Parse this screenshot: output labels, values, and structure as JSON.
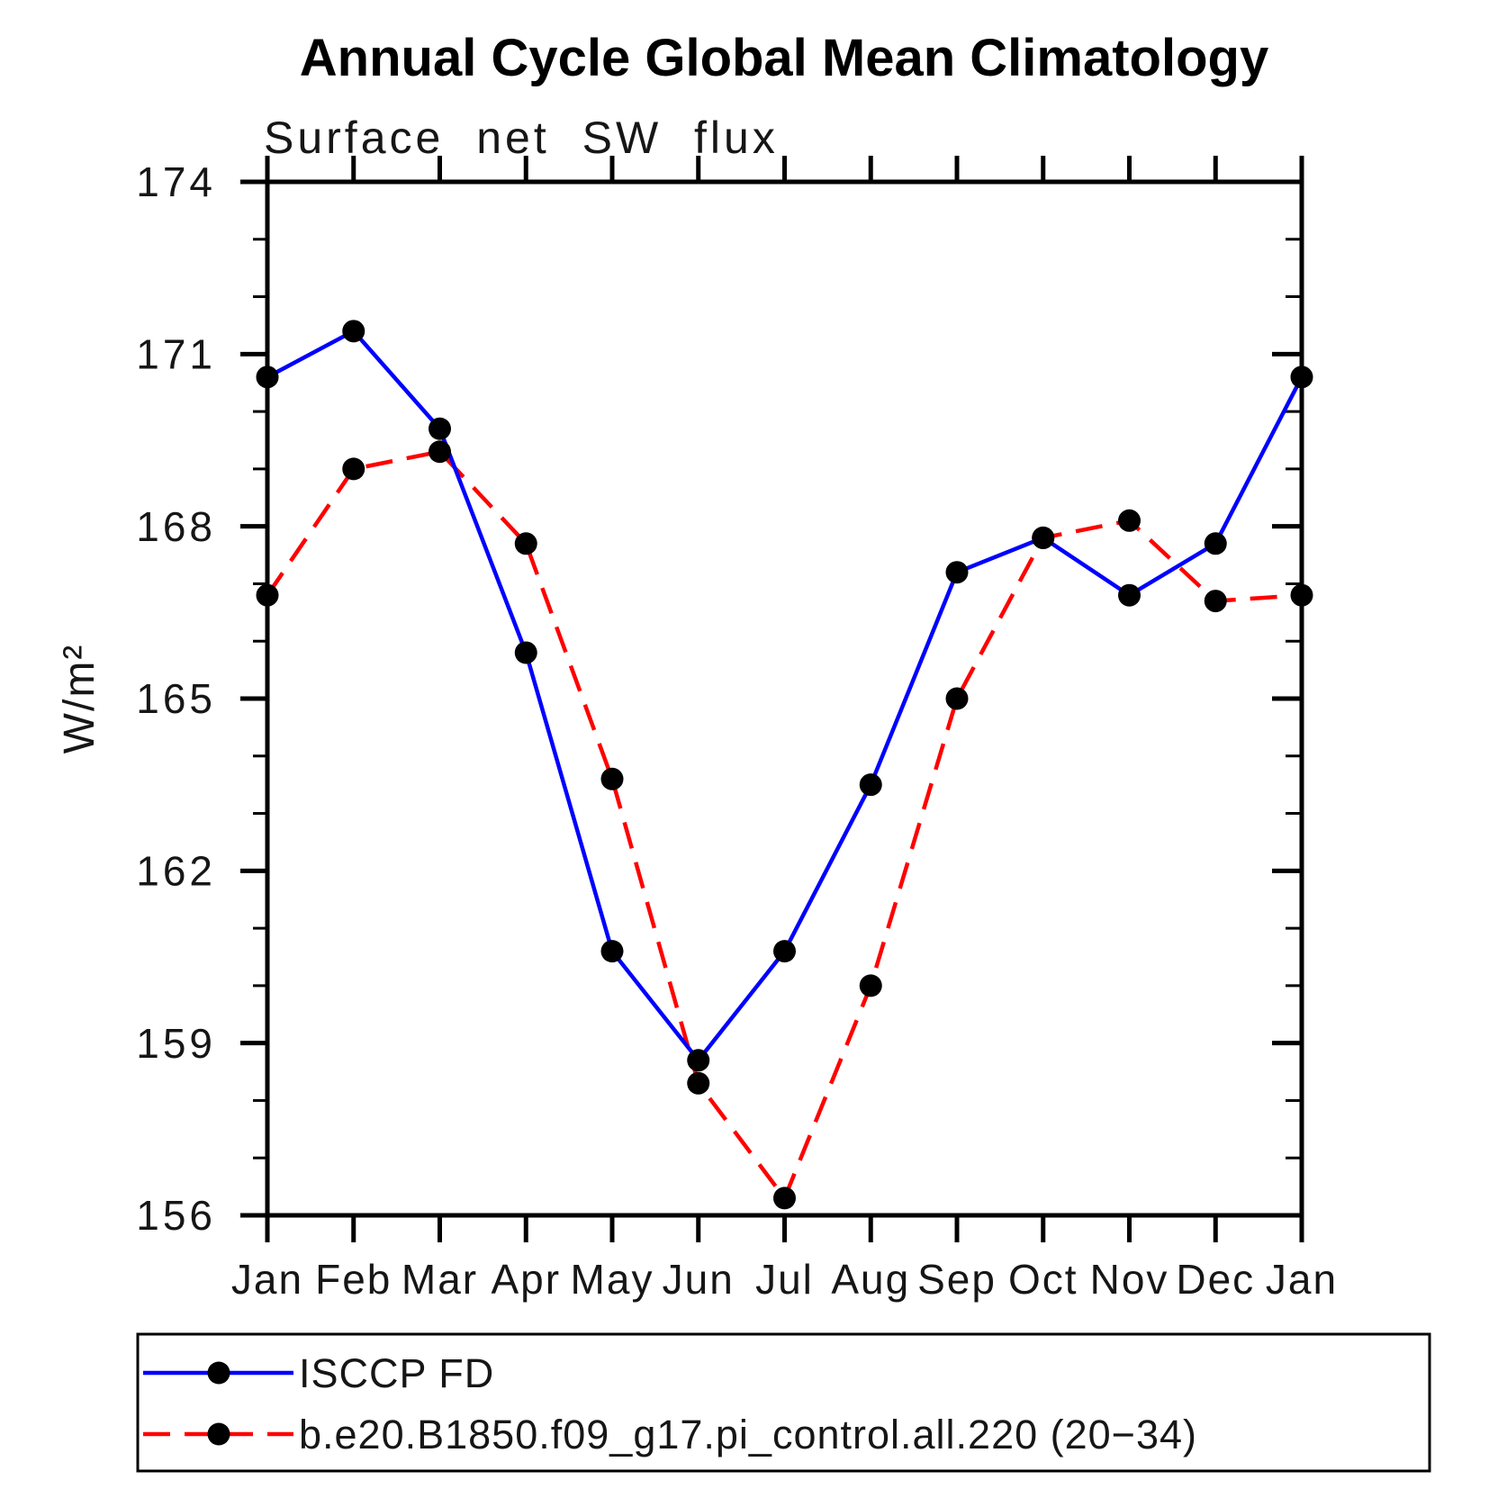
{
  "title": "Annual Cycle Global Mean Climatology",
  "subtitle": "Surface net SW flux",
  "chart_data": {
    "type": "line",
    "title": "Annual Cycle Global Mean Climatology",
    "subtitle": "Surface net SW flux",
    "ylabel": "W/m²",
    "xlabel": "",
    "x_tick_labels": [
      "Jan",
      "Feb",
      "Mar",
      "Apr",
      "May",
      "Jun",
      "Jul",
      "Aug",
      "Sep",
      "Oct",
      "Nov",
      "Dec",
      "Jan"
    ],
    "ylim": [
      156,
      174
    ],
    "y_major_ticks": [
      156,
      159,
      162,
      165,
      168,
      171,
      174
    ],
    "y_minor_step": 1,
    "grid": false,
    "legend_position": "bottom-box",
    "series": [
      {
        "name": "ISCCP FD",
        "color": "#0000ff",
        "line_style": "solid",
        "marker": "filled-circle",
        "marker_color": "#000000",
        "values": [
          170.6,
          171.4,
          169.7,
          165.8,
          160.6,
          158.7,
          160.6,
          163.5,
          167.2,
          167.8,
          166.8,
          167.7,
          170.6
        ]
      },
      {
        "name": "b.e20.B1850.f09_g17.pi_control.all.220 (20−34)",
        "color": "#ff0000",
        "line_style": "dashed",
        "marker": "filled-circle",
        "marker_color": "#000000",
        "values": [
          166.8,
          169.0,
          169.3,
          167.7,
          163.6,
          158.3,
          156.3,
          160.0,
          165.0,
          167.8,
          168.1,
          166.7,
          166.8
        ]
      }
    ]
  },
  "colors": {
    "axis": "#000000",
    "background": "#ffffff",
    "series_blue": "#0000ff",
    "series_red": "#ff0000",
    "marker": "#000000"
  }
}
